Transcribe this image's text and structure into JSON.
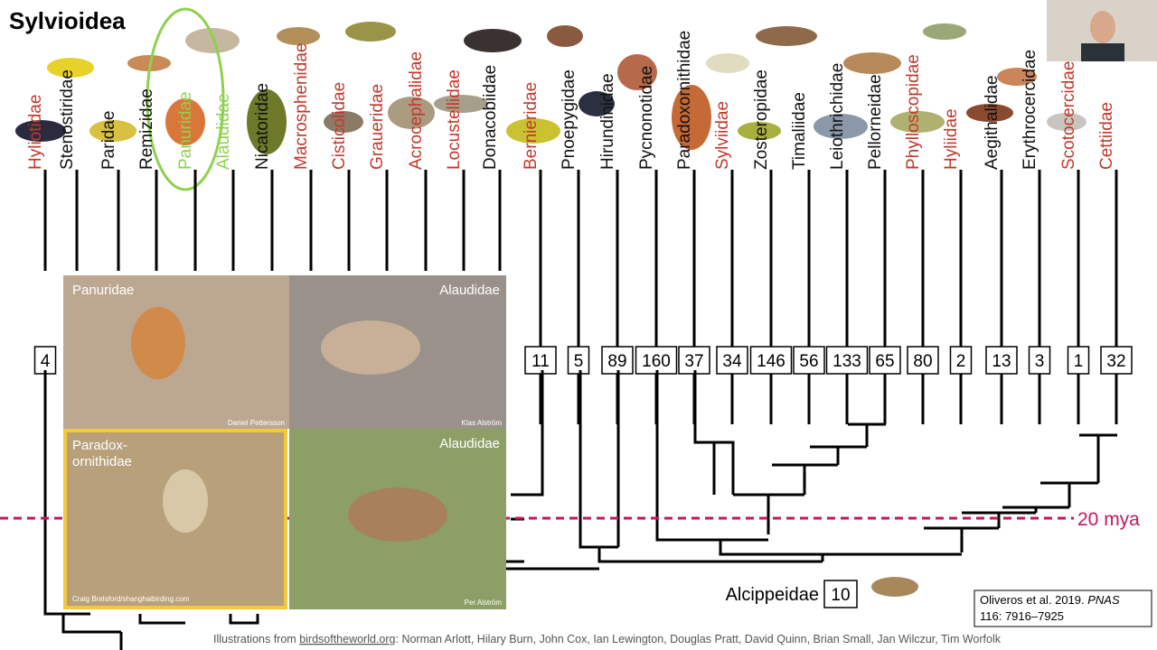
{
  "header": {
    "title": "Sylvioidea"
  },
  "families": [
    {
      "name": "Hyliotidae",
      "color": "#c0392b",
      "count": "4"
    },
    {
      "name": "Stenostiridae",
      "color": "#111111"
    },
    {
      "name": "Paridae",
      "color": "#111111"
    },
    {
      "name": "Remizidae",
      "color": "#111111"
    },
    {
      "name": "Panuridae",
      "color": "#8fd14f"
    },
    {
      "name": "Alaudidae",
      "color": "#8fd14f"
    },
    {
      "name": "Nicatoridae",
      "color": "#111111"
    },
    {
      "name": "Macrosphenidae",
      "color": "#c0392b"
    },
    {
      "name": "Cisticolidae",
      "color": "#c0392b"
    },
    {
      "name": "Graueridae",
      "color": "#c0392b"
    },
    {
      "name": "Acrocephalidae",
      "color": "#c0392b"
    },
    {
      "name": "Locustellidae",
      "color": "#c0392b"
    },
    {
      "name": "Donacobiidae",
      "color": "#111111"
    },
    {
      "name": "Bernieridae",
      "color": "#c0392b",
      "count": "11"
    },
    {
      "name": "Pnoepygidae",
      "color": "#111111",
      "count": "5"
    },
    {
      "name": "Hirundinidae",
      "color": "#111111",
      "count": "89"
    },
    {
      "name": "Pycnonotidae",
      "color": "#111111",
      "count": "160"
    },
    {
      "name": "Paradoxornithidae",
      "color": "#111111",
      "count": "37"
    },
    {
      "name": "Sylviidae",
      "color": "#c0392b",
      "count": "34"
    },
    {
      "name": "Zosteropidae",
      "color": "#111111",
      "count": "146"
    },
    {
      "name": "Timaliidae",
      "color": "#111111",
      "count": "56"
    },
    {
      "name": "Leiothrichidae",
      "color": "#111111",
      "count": "133"
    },
    {
      "name": "Pellorneidae",
      "color": "#111111",
      "count": "65"
    },
    {
      "name": "Phylloscopidae",
      "color": "#c0392b",
      "count": "80"
    },
    {
      "name": "Hyliidae",
      "color": "#c0392b",
      "count": "2"
    },
    {
      "name": "Aegithalidae",
      "color": "#111111",
      "count": "13"
    },
    {
      "name": "Erythrocercidae",
      "color": "#111111",
      "count": "3"
    },
    {
      "name": "Scotocercidae",
      "color": "#c0392b",
      "count": "1"
    },
    {
      "name": "Cettiidae",
      "color": "#c0392b",
      "count": "32"
    }
  ],
  "time_marker": "20 mya",
  "outgroup": {
    "name": "Alcippeidae",
    "count": "10"
  },
  "photos": [
    {
      "label": "Panuridae",
      "credit": "Daniel Pettersson"
    },
    {
      "label": "Alaudidae",
      "credit": "Klas Alström"
    },
    {
      "label": "Paradox-\nornithidae",
      "credit": "Craig Brelsford/shanghaibirding.com"
    },
    {
      "label": "Alaudidae",
      "credit": "Per Alström"
    }
  ],
  "citation": {
    "authors": "Oliveros et al. 2019.",
    "journal": "PNAS",
    "ref": "116: 7916–7925"
  },
  "credits": {
    "prefix": "Illustrations from",
    "site": "birdsoftheworld.org",
    "names": ": Norman Arlott, Hilary Burn, John Cox, Ian Lewington, Douglas Pratt, David Quinn, Brian Small, Jan Wilczur, Tim Worfolk"
  }
}
